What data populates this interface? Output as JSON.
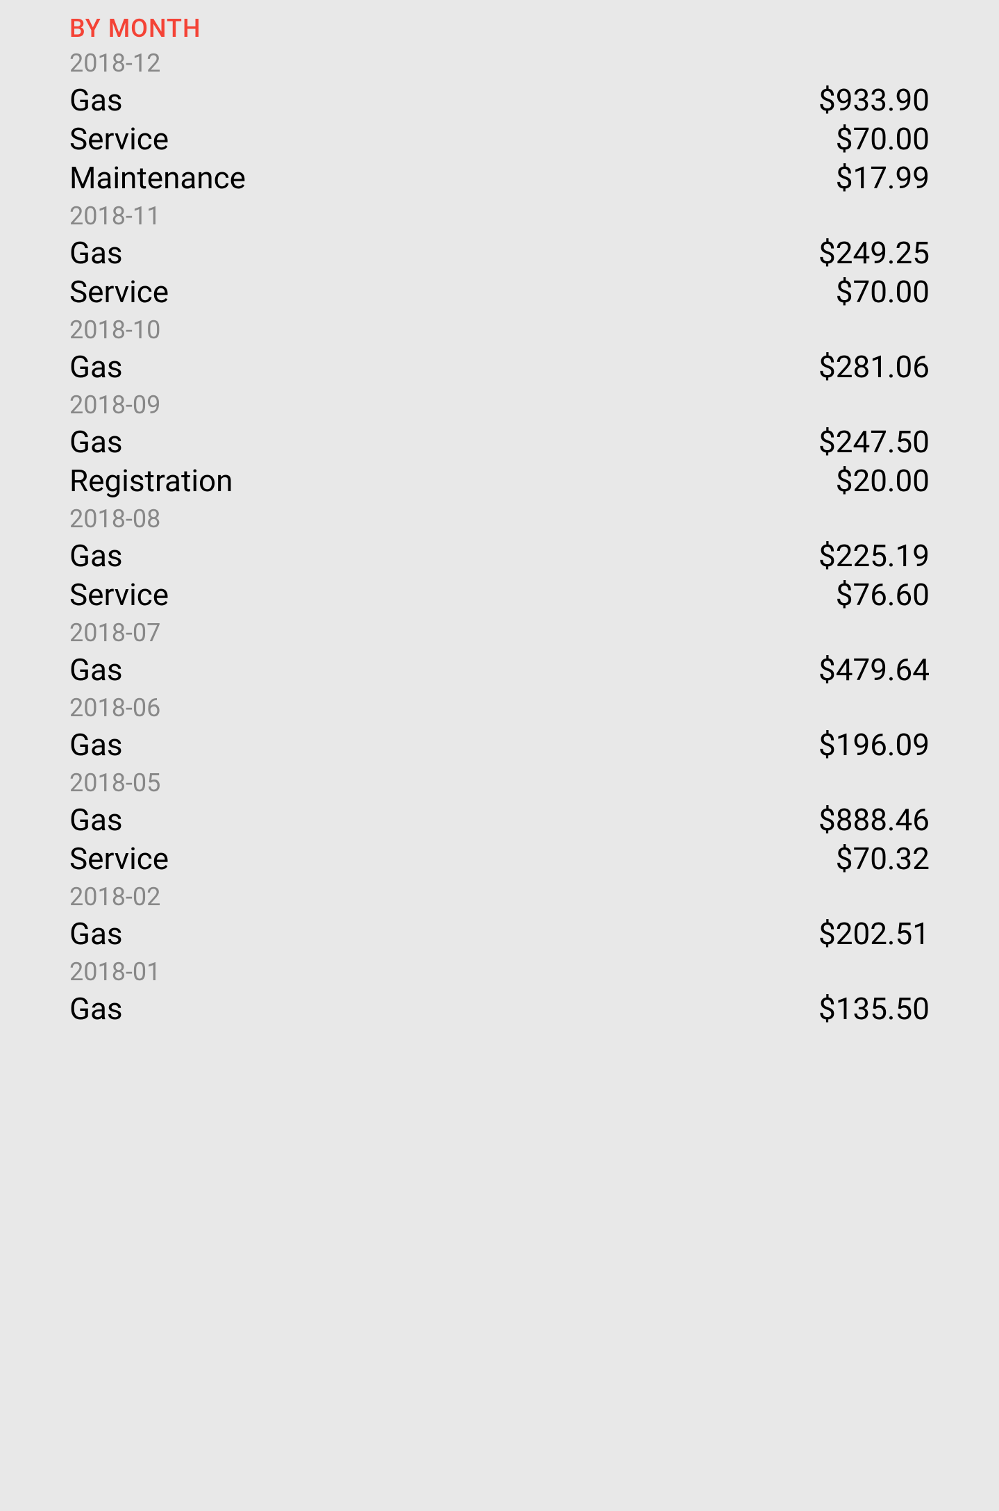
{
  "header": {
    "title": "BY MONTH"
  },
  "months": [
    {
      "label": "2018-12",
      "expenses": [
        {
          "category": "Gas",
          "amount": "$933.90"
        },
        {
          "category": "Service",
          "amount": "$70.00"
        },
        {
          "category": "Maintenance",
          "amount": "$17.99"
        }
      ]
    },
    {
      "label": "2018-11",
      "expenses": [
        {
          "category": "Gas",
          "amount": "$249.25"
        },
        {
          "category": "Service",
          "amount": "$70.00"
        }
      ]
    },
    {
      "label": "2018-10",
      "expenses": [
        {
          "category": "Gas",
          "amount": "$281.06"
        }
      ]
    },
    {
      "label": "2018-09",
      "expenses": [
        {
          "category": "Gas",
          "amount": "$247.50"
        },
        {
          "category": "Registration",
          "amount": "$20.00"
        }
      ]
    },
    {
      "label": "2018-08",
      "expenses": [
        {
          "category": "Gas",
          "amount": "$225.19"
        },
        {
          "category": "Service",
          "amount": "$76.60"
        }
      ]
    },
    {
      "label": "2018-07",
      "expenses": [
        {
          "category": "Gas",
          "amount": "$479.64"
        }
      ]
    },
    {
      "label": "2018-06",
      "expenses": [
        {
          "category": "Gas",
          "amount": "$196.09"
        }
      ]
    },
    {
      "label": "2018-05",
      "expenses": [
        {
          "category": "Gas",
          "amount": "$888.46"
        },
        {
          "category": "Service",
          "amount": "$70.32"
        }
      ]
    },
    {
      "label": "2018-02",
      "expenses": [
        {
          "category": "Gas",
          "amount": "$202.51"
        }
      ]
    },
    {
      "label": "2018-01",
      "expenses": [
        {
          "category": "Gas",
          "amount": "$135.50"
        }
      ]
    }
  ]
}
